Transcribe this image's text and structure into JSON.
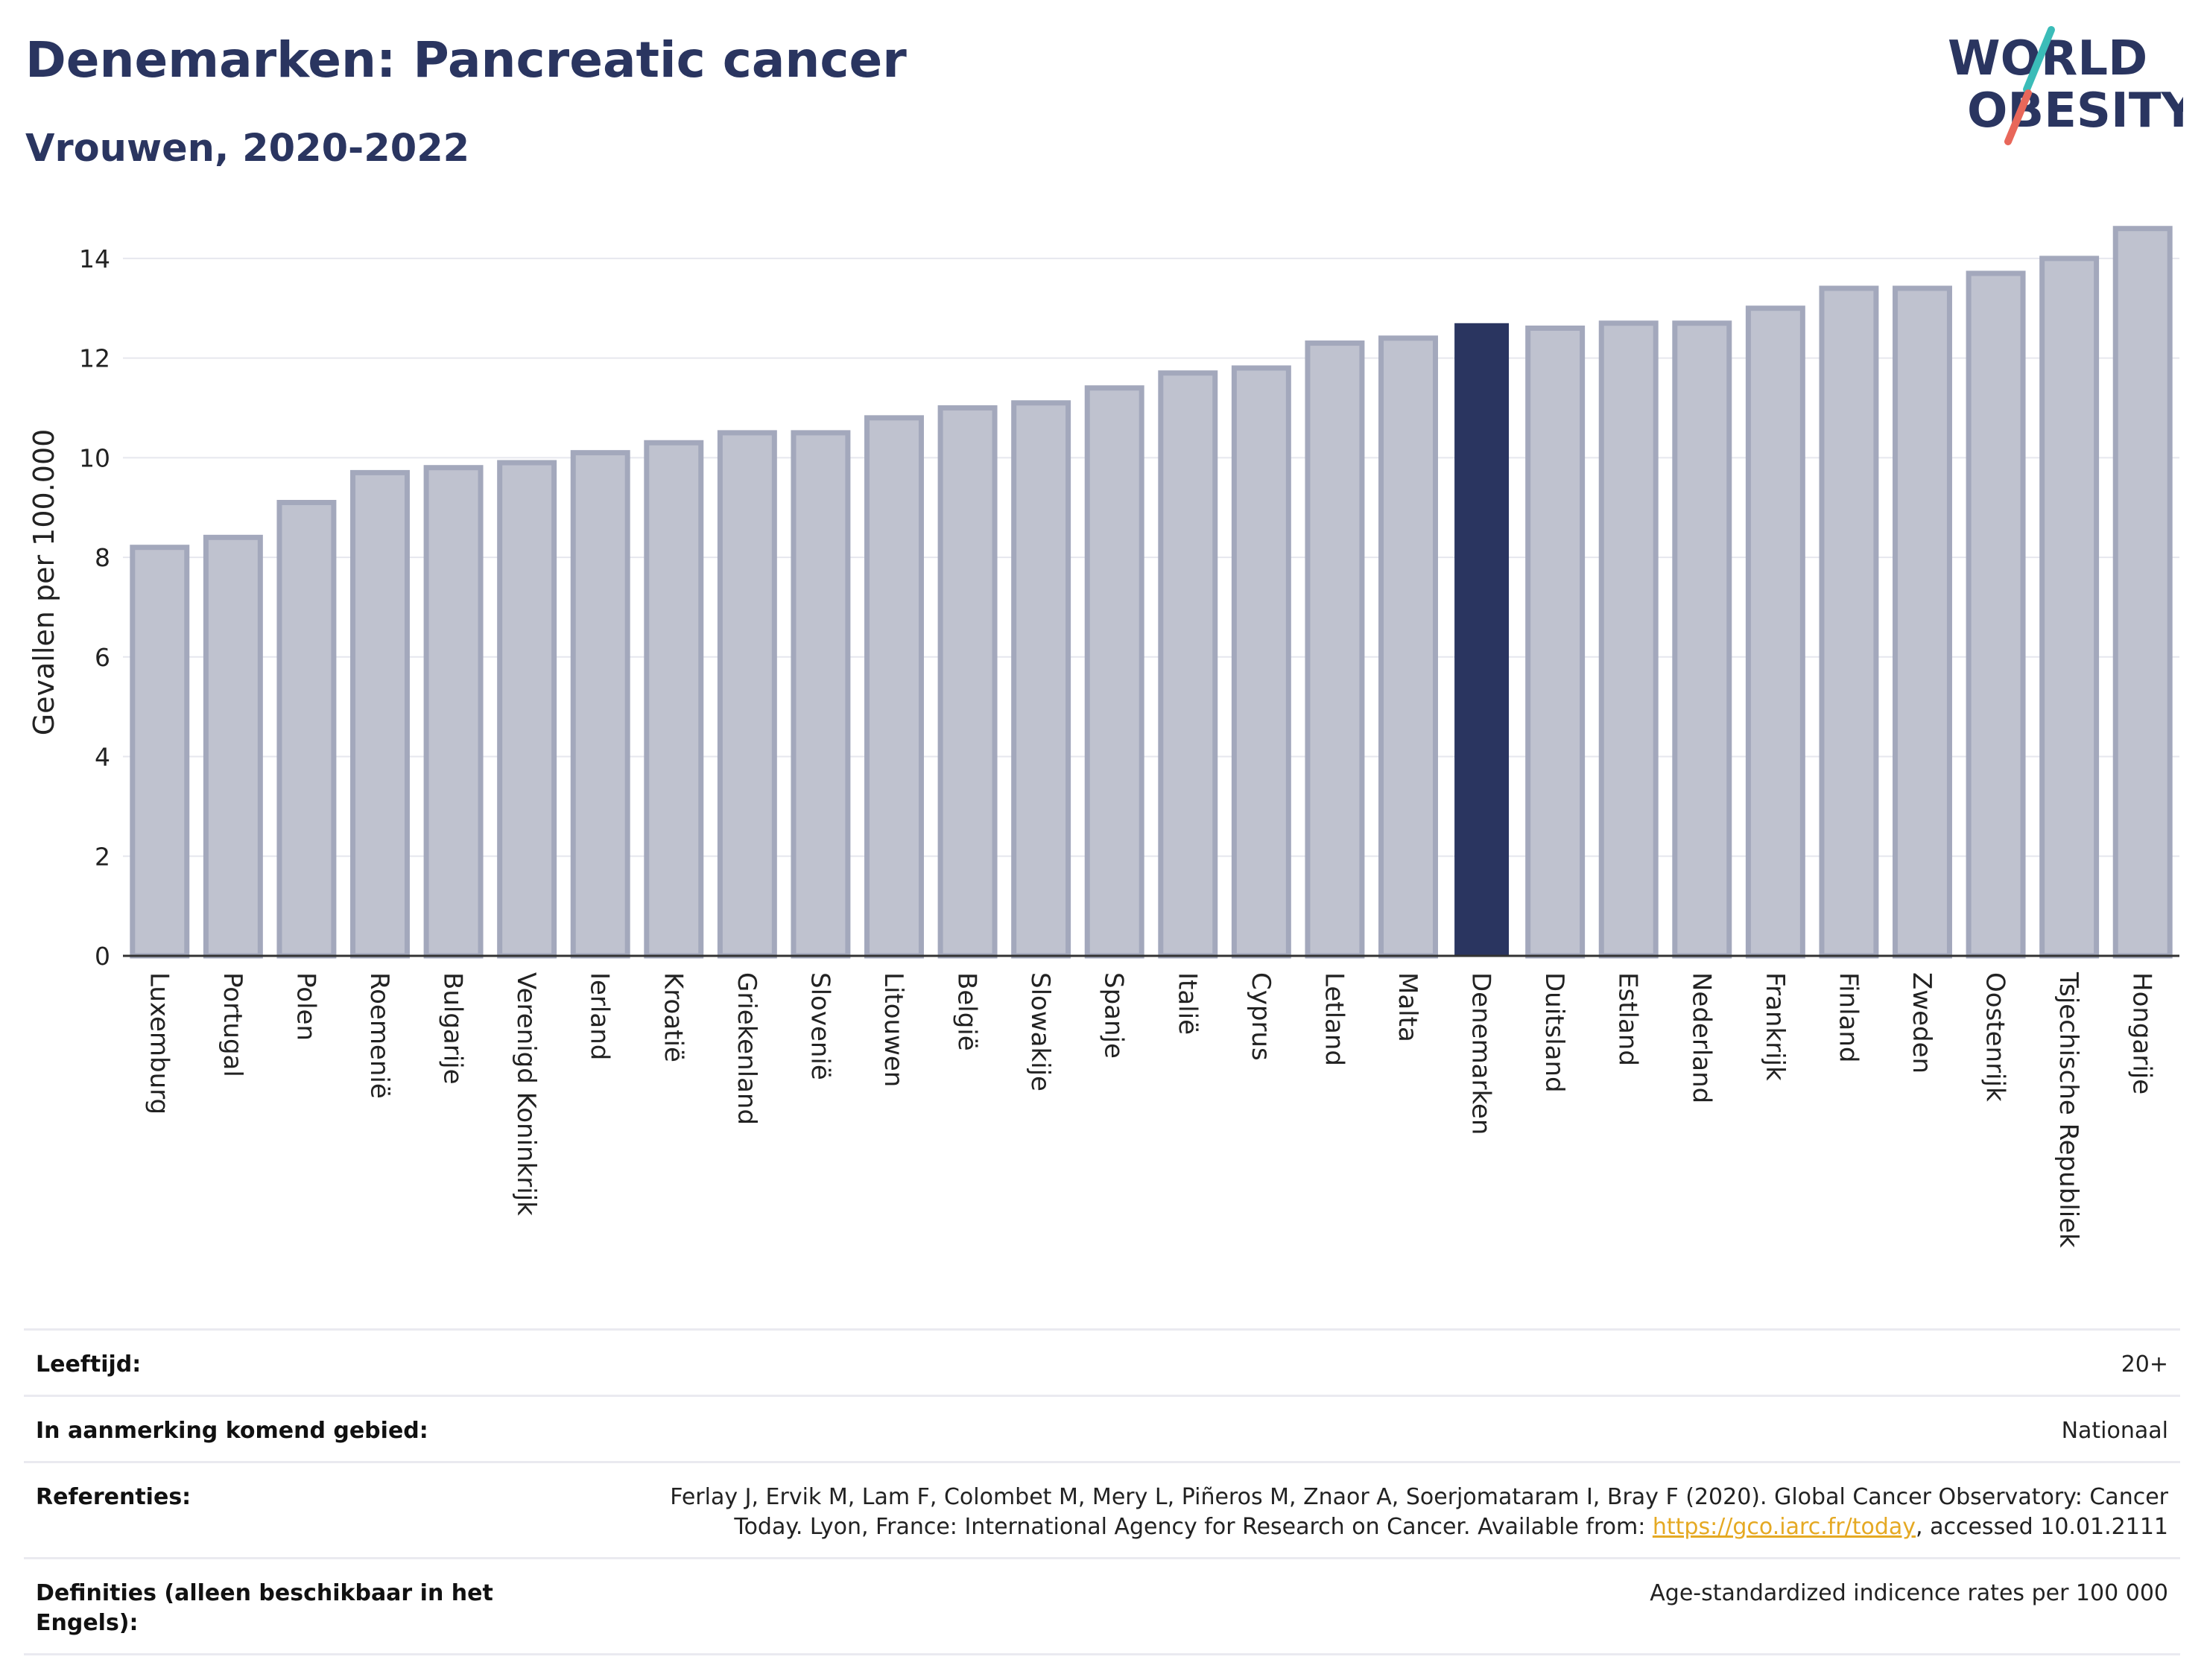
{
  "header": {
    "title": "Denemarken: Pancreatic cancer",
    "subtitle": "Vrouwen, 2020-2022"
  },
  "logo": {
    "line1": "WORLD",
    "line2": "OBESITY"
  },
  "colors": {
    "bar": "#bfc2cf",
    "bar_border": "#a3a8bc",
    "highlight": "#2a3560",
    "title": "#2a3560"
  },
  "chart_data": {
    "type": "bar",
    "ylabel": "Gevallen per 100.000",
    "ylim": [
      0,
      15
    ],
    "yticks": [
      0,
      2,
      4,
      6,
      8,
      10,
      12,
      14
    ],
    "grid": true,
    "highlight": "Denemarken",
    "categories": [
      "Luxemburg",
      "Portugal",
      "Polen",
      "Roemenië",
      "Bulgarije",
      "Verenigd Koninkrijk",
      "Ierland",
      "Kroatië",
      "Griekenland",
      "Slovenië",
      "Litouwen",
      "België",
      "Slowakije",
      "Spanje",
      "Italië",
      "Cyprus",
      "Letland",
      "Malta",
      "Denemarken",
      "Duitsland",
      "Estland",
      "Nederland",
      "Frankrijk",
      "Finland",
      "Zweden",
      "Oostenrijk",
      "Tsjechische Republiek",
      "Hongarije"
    ],
    "values": [
      8.2,
      8.4,
      9.1,
      9.7,
      9.8,
      9.9,
      10.1,
      10.3,
      10.5,
      10.5,
      10.8,
      11.0,
      11.1,
      11.4,
      11.7,
      11.8,
      12.3,
      12.4,
      12.7,
      12.6,
      12.7,
      12.7,
      13.0,
      13.4,
      13.4,
      13.7,
      14.0,
      14.6
    ]
  },
  "info": {
    "age_label": "Leeftijd:",
    "age_value": "20+",
    "area_label": "In aanmerking komend gebied:",
    "area_value": "Nationaal",
    "ref_label": "Referenties:",
    "ref_text_1": "Ferlay J, Ervik M, Lam F, Colombet M, Mery L, Piñeros M, Znaor A, Soerjomataram I, Bray F (2020). Global Cancer Observatory: Cancer",
    "ref_text_2": "Today. Lyon, France: International Agency for Research on Cancer. Available from: ",
    "ref_link": "https://gco.iarc.fr/today",
    "ref_text_3": ", accessed 10.01.2111",
    "def_label": "Definities (alleen beschikbaar in het Engels):",
    "def_value": "Age-standardized indicence rates per 100 000"
  }
}
